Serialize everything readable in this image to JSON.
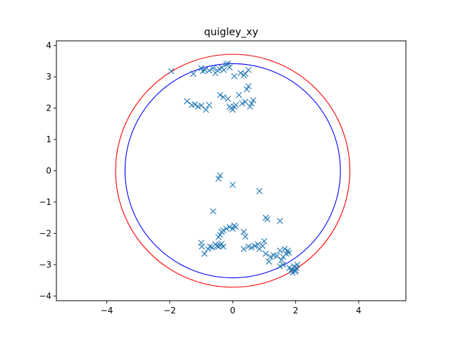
{
  "chart_data": {
    "type": "scatter",
    "title": "quigley_xy",
    "xlabel": "",
    "ylabel": "",
    "xlim": [
      -5.6,
      5.5
    ],
    "ylim": [
      -4.15,
      4.15
    ],
    "xticks": [
      -4,
      -2,
      0,
      2,
      4
    ],
    "yticks": [
      -4,
      -3,
      -2,
      -1,
      0,
      1,
      2,
      3,
      4
    ],
    "grid": false,
    "marker": "x",
    "marker_color": "#1f77b4",
    "circles": [
      {
        "center": [
          0,
          0
        ],
        "radius": 3.72,
        "color": "#ff0000"
      },
      {
        "center": [
          0,
          0
        ],
        "radius": 3.42,
        "color": "#0000ff"
      }
    ],
    "points": [
      [
        -1.95,
        3.18
      ],
      [
        -1.25,
        3.1
      ],
      [
        -1.0,
        3.28
      ],
      [
        -0.95,
        3.18
      ],
      [
        -0.88,
        3.22
      ],
      [
        -0.75,
        3.2
      ],
      [
        -0.62,
        3.28
      ],
      [
        -0.55,
        3.12
      ],
      [
        -0.48,
        3.2
      ],
      [
        -0.42,
        3.25
      ],
      [
        -0.35,
        3.3
      ],
      [
        -0.28,
        3.22
      ],
      [
        -0.2,
        3.4
      ],
      [
        -0.15,
        3.42
      ],
      [
        -0.1,
        3.3
      ],
      [
        0.05,
        3.02
      ],
      [
        0.25,
        3.12
      ],
      [
        0.35,
        3.05
      ],
      [
        0.4,
        3.1
      ],
      [
        0.5,
        3.22
      ],
      [
        -1.45,
        2.22
      ],
      [
        -1.3,
        2.1
      ],
      [
        -1.2,
        2.12
      ],
      [
        -1.1,
        2.05
      ],
      [
        -1.0,
        2.08
      ],
      [
        -0.85,
        1.95
      ],
      [
        -0.75,
        2.1
      ],
      [
        -0.4,
        2.42
      ],
      [
        -0.3,
        2.35
      ],
      [
        -0.15,
        2.3
      ],
      [
        -0.1,
        2.05
      ],
      [
        -0.05,
        2.0
      ],
      [
        0.0,
        1.95
      ],
      [
        0.05,
        2.05
      ],
      [
        0.1,
        2.1
      ],
      [
        0.2,
        2.42
      ],
      [
        0.3,
        2.15
      ],
      [
        0.4,
        2.2
      ],
      [
        0.45,
        2.6
      ],
      [
        0.5,
        2.7
      ],
      [
        0.55,
        2.05
      ],
      [
        0.6,
        2.15
      ],
      [
        0.65,
        2.25
      ],
      [
        -0.45,
        -0.25
      ],
      [
        -0.4,
        -0.15
      ],
      [
        0.0,
        -0.45
      ],
      [
        0.85,
        -0.65
      ],
      [
        -0.62,
        -1.3
      ],
      [
        1.05,
        -1.5
      ],
      [
        1.1,
        -1.55
      ],
      [
        1.5,
        -1.6
      ],
      [
        -1.0,
        -2.3
      ],
      [
        -0.98,
        -2.42
      ],
      [
        -0.9,
        -2.65
      ],
      [
        -0.78,
        -2.5
      ],
      [
        -0.72,
        -2.42
      ],
      [
        -0.65,
        -2.45
      ],
      [
        -0.55,
        -2.35
      ],
      [
        -0.5,
        -2.4
      ],
      [
        -0.45,
        -2.42
      ],
      [
        -0.4,
        -2.38
      ],
      [
        -0.35,
        -2.33
      ],
      [
        -0.3,
        -2.42
      ],
      [
        -0.45,
        -2.12
      ],
      [
        -0.4,
        -2.05
      ],
      [
        -0.35,
        -1.95
      ],
      [
        -0.3,
        -1.9
      ],
      [
        -0.2,
        -1.85
      ],
      [
        -0.1,
        -1.8
      ],
      [
        0.0,
        -1.85
      ],
      [
        0.05,
        -1.75
      ],
      [
        0.1,
        -1.8
      ],
      [
        0.35,
        -1.95
      ],
      [
        0.4,
        -2.1
      ],
      [
        0.35,
        -2.5
      ],
      [
        0.5,
        -2.42
      ],
      [
        0.6,
        -2.45
      ],
      [
        0.7,
        -2.4
      ],
      [
        0.8,
        -2.35
      ],
      [
        0.85,
        -2.5
      ],
      [
        0.95,
        -2.4
      ],
      [
        1.05,
        -2.65
      ],
      [
        1.0,
        -2.25
      ],
      [
        1.15,
        -2.9
      ],
      [
        1.2,
        -2.75
      ],
      [
        1.3,
        -2.7
      ],
      [
        1.4,
        -2.72
      ],
      [
        1.5,
        -2.55
      ],
      [
        1.55,
        -2.85
      ],
      [
        1.6,
        -2.75
      ],
      [
        1.65,
        -2.5
      ],
      [
        1.7,
        -2.65
      ],
      [
        1.75,
        -2.55
      ],
      [
        1.78,
        -2.62
      ],
      [
        1.5,
        -3.05
      ],
      [
        1.6,
        -3.0
      ],
      [
        1.8,
        -3.1
      ],
      [
        1.85,
        -3.2
      ],
      [
        1.9,
        -3.25
      ],
      [
        1.95,
        -3.05
      ],
      [
        2.0,
        -3.18
      ],
      [
        2.02,
        -3.1
      ],
      [
        2.05,
        -3.0
      ],
      [
        1.98,
        -3.22
      ],
      [
        1.88,
        -3.15
      ]
    ]
  }
}
